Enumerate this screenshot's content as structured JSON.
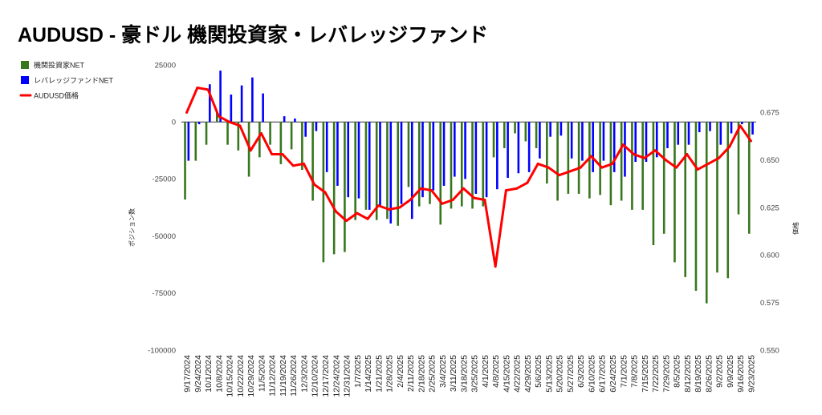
{
  "chart_data": {
    "type": "bar",
    "title": "AUDUSD - 豪ドル 機関投資家・レバレッジファンド",
    "ylabel": "ポジション数",
    "y2label": "価格",
    "ylim": [
      -100000,
      25000
    ],
    "y2lim": [
      0.55,
      0.7
    ],
    "y_ticks": [
      "25000",
      "0",
      "-25000",
      "-50000",
      "-75000",
      "-100000"
    ],
    "y2_ticks": [
      "0.675",
      "0.650",
      "0.625",
      "0.600",
      "0.575",
      "0.550"
    ],
    "grid": false,
    "legend": "left",
    "categories": [
      "9/17/2024",
      "9/24/2024",
      "10/1/2024",
      "10/8/2024",
      "10/15/2024",
      "10/22/2024",
      "10/29/2024",
      "11/5/2024",
      "11/12/2024",
      "11/19/2024",
      "11/26/2024",
      "12/3/2024",
      "12/10/2024",
      "12/17/2024",
      "12/24/2024",
      "12/31/2024",
      "1/7/2025",
      "1/14/2025",
      "1/21/2025",
      "1/28/2025",
      "2/4/2025",
      "2/11/2025",
      "2/18/2025",
      "2/25/2025",
      "3/4/2025",
      "3/11/2025",
      "3/18/2025",
      "3/25/2025",
      "4/1/2025",
      "4/8/2025",
      "4/15/2025",
      "4/22/2025",
      "4/29/2025",
      "5/6/2025",
      "5/13/2025",
      "5/20/2025",
      "5/27/2025",
      "6/3/2025",
      "6/10/2025",
      "6/17/2025",
      "6/24/2025",
      "7/1/2025",
      "7/8/2025",
      "7/15/2025",
      "7/22/2025",
      "7/29/2025",
      "8/5/2025",
      "8/12/2025",
      "8/19/2025",
      "8/26/2025",
      "9/2/2025",
      "9/9/2025",
      "9/16/2025",
      "9/23/2025"
    ],
    "series": [
      {
        "name": "機関投資家NET",
        "type": "bar",
        "axis": "left",
        "color": "#38761d",
        "values": [
          -34000,
          -17000,
          -10000,
          4500,
          -10000,
          -12500,
          -24000,
          -15500,
          -10000,
          -18500,
          -12000,
          -21000,
          -34500,
          -61500,
          -58000,
          -57000,
          -43000,
          -38500,
          -43000,
          -42500,
          -45500,
          -28500,
          -37000,
          -36000,
          -45000,
          -38000,
          -37000,
          -38000,
          -37000,
          -15500,
          -11500,
          -5000,
          -8500,
          -11500,
          -27000,
          -34500,
          -31500,
          -31500,
          -33500,
          -32000,
          -36500,
          -34500,
          -38500,
          -38500,
          -54000,
          -49000,
          -61500,
          -68000,
          -74000,
          -79500,
          -66000,
          -68500,
          -40500,
          -49000
        ]
      },
      {
        "name": "レバレッジファンドNET",
        "type": "bar",
        "axis": "left",
        "color": "#0000ff",
        "values": [
          -17000,
          -1000,
          16500,
          22500,
          12000,
          16000,
          19500,
          12500,
          0,
          2500,
          1500,
          -6500,
          -4000,
          -22000,
          -28000,
          -33000,
          -33500,
          -38500,
          -37000,
          -44500,
          -36000,
          -42500,
          -33000,
          -30000,
          -28000,
          -24000,
          -25000,
          -31500,
          -33000,
          -29500,
          -24500,
          -22500,
          -22000,
          -16000,
          -6500,
          -6000,
          -16000,
          -17000,
          -22000,
          -17000,
          -22000,
          -24000,
          -17500,
          -17500,
          -15500,
          -11500,
          -10000,
          -10000,
          -4500,
          -4000,
          -10000,
          -5000,
          -1000,
          -5500
        ]
      },
      {
        "name": "AUDUSD価格",
        "type": "line",
        "axis": "right",
        "color": "#ff0000",
        "values": [
          0.675,
          0.688,
          0.687,
          0.673,
          0.67,
          0.668,
          0.655,
          0.664,
          0.653,
          0.653,
          0.647,
          0.648,
          0.637,
          0.633,
          0.623,
          0.618,
          0.622,
          0.619,
          0.626,
          0.624,
          0.625,
          0.629,
          0.635,
          0.634,
          0.627,
          0.629,
          0.635,
          0.63,
          0.629,
          0.594,
          0.634,
          0.635,
          0.638,
          0.648,
          0.646,
          0.642,
          0.644,
          0.646,
          0.652,
          0.646,
          0.648,
          0.658,
          0.653,
          0.651,
          0.655,
          0.65,
          0.646,
          0.653,
          0.645,
          0.648,
          0.651,
          0.657,
          0.668,
          0.66
        ]
      }
    ]
  }
}
